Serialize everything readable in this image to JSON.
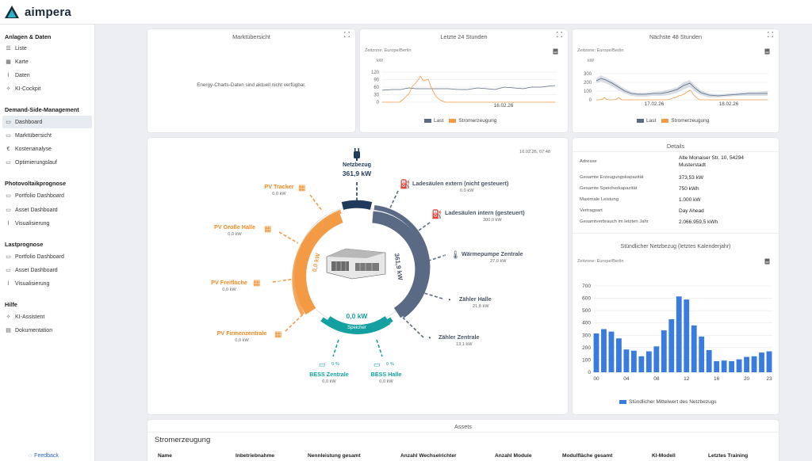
{
  "app": {
    "name": "aimpera"
  },
  "sidebar": {
    "sections": [
      {
        "title": "Anlagen & Daten",
        "items": [
          {
            "label": "Liste",
            "icon": "list-icon"
          },
          {
            "label": "Karte",
            "icon": "map-icon"
          },
          {
            "label": "Daten",
            "icon": "chart-icon"
          },
          {
            "label": "KI-Cockpit",
            "icon": "ai-icon"
          }
        ]
      },
      {
        "title": "Demand-Side-Management",
        "items": [
          {
            "label": "Dashboard",
            "icon": "monitor-icon"
          },
          {
            "label": "Marktübersicht",
            "icon": "monitor-icon"
          },
          {
            "label": "Kostenanalyse",
            "icon": "euro-icon"
          },
          {
            "label": "Optimierungslauf",
            "icon": "monitor-icon"
          }
        ]
      },
      {
        "title": "Photovoltaikprognose",
        "items": [
          {
            "label": "Portfolio Dashboard",
            "icon": "monitor-icon"
          },
          {
            "label": "Asset Dashboard",
            "icon": "monitor-icon"
          },
          {
            "label": "Visualisierung",
            "icon": "chart-icon"
          }
        ]
      },
      {
        "title": "Lastprognose",
        "items": [
          {
            "label": "Portfolio Dashboard",
            "icon": "monitor-icon"
          },
          {
            "label": "Asset Dashboard",
            "icon": "monitor-icon"
          },
          {
            "label": "Visualisierung",
            "icon": "chart-icon"
          }
        ]
      },
      {
        "title": "Hilfe",
        "items": [
          {
            "label": "KI-Assistent",
            "icon": "ai-icon"
          },
          {
            "label": "Dokumentation",
            "icon": "doc-icon"
          }
        ]
      }
    ],
    "feedback": "Feedback"
  },
  "market": {
    "title": "Marktübersicht",
    "message": "Energy-Charts-Daten sind aktuell nicht verfügbar."
  },
  "last24": {
    "title": "Letzte 24 Stunden",
    "timezone": "Zeitzone: Europe/Berlin",
    "unit": "kW",
    "yticks": [
      "120",
      "90",
      "60",
      "30",
      "0"
    ],
    "xtick": "16.02.26",
    "legend": [
      "Last",
      "Stromerzeugung"
    ]
  },
  "next48": {
    "title": "Nächste 48 Stunden",
    "timezone": "Zeitzone: Europe/Berlin",
    "unit": "kW",
    "yticks": [
      "300",
      "200",
      "100",
      "0"
    ],
    "xticks": [
      "17.02.26",
      "18.02.26"
    ],
    "legend": [
      "Last",
      "Stromerzeugung"
    ]
  },
  "colors": {
    "last": "#5a6a85",
    "generation": "#f39a45",
    "storage": "#14a0a0",
    "grid": "#1f3a5c",
    "bar": "#3a7be0"
  },
  "flow": {
    "timestamp": "16.02.26, 07:48",
    "grid": {
      "label": "Netzbezug",
      "value": "361,9 kW"
    },
    "generation_ring": {
      "label": "Stromerzeugung",
      "value": "0,0 kW"
    },
    "load_ring": {
      "label": "Last",
      "value": "361,9 kW"
    },
    "storage_ring": {
      "label": "Speicher",
      "value": "0,0 kW"
    },
    "sources": [
      {
        "name": "PV Tracker",
        "value": "0,0 kW"
      },
      {
        "name": "PV Große Halle",
        "value": "0,0 kW"
      },
      {
        "name": "PV Freifläche",
        "value": "0,0 kW"
      },
      {
        "name": "PV Firmenzentrale",
        "value": "0,0 kW"
      }
    ],
    "loads": [
      {
        "name": "Ladesäulen extern (nicht gesteuert)",
        "value": "0,0 kW"
      },
      {
        "name": "Ladesäulen intern (gesteuert)",
        "value": "300,0 kW"
      },
      {
        "name": "Wärmepumpe Zentrale",
        "value": "27,0 kW"
      },
      {
        "name": "Zähler Halle",
        "value": "21,8 kW"
      },
      {
        "name": "Zähler Zentrale",
        "value": "13,1 kW"
      }
    ],
    "storages": [
      {
        "name": "BESS Zentrale",
        "value": "0,0 kW",
        "soc": "0 %"
      },
      {
        "name": "BESS Halle",
        "value": "0,0 kW",
        "soc": "0 %"
      }
    ]
  },
  "details": {
    "title": "Details",
    "rows": [
      {
        "label": "Adresse",
        "value": "Alte Monaiser Str. 10, 54294",
        "value2": "Musterstadt"
      },
      {
        "label": "Gesamte Erzeugungskapazität",
        "value": "373,53 kW"
      },
      {
        "label": "Gesamte Speicherkapazität",
        "value": "750 kWh"
      },
      {
        "label": "Maximale Leistung",
        "value": "1.000 kW"
      },
      {
        "label": "Vertragsart",
        "value": "Day Ahead"
      },
      {
        "label": "Gesamtverbrauch im letzten Jahr",
        "value": "2.066.959,5 kWh"
      }
    ]
  },
  "hourly": {
    "title": "Stündlicher Netzbezug (letztes Kalenderjahr)",
    "timezone": "Zeitzone: Europe/Berlin",
    "legend": "Stündlicher Mittelwert des Netzbezugs"
  },
  "chart_data": {
    "type": "bar",
    "x": [
      0,
      1,
      2,
      3,
      4,
      5,
      6,
      7,
      8,
      9,
      10,
      11,
      12,
      13,
      14,
      15,
      16,
      17,
      18,
      19,
      20,
      21,
      22,
      23
    ],
    "values": [
      315,
      350,
      330,
      275,
      185,
      175,
      130,
      170,
      210,
      340,
      430,
      615,
      590,
      380,
      290,
      180,
      90,
      95,
      90,
      105,
      125,
      130,
      160,
      170
    ],
    "xticks": [
      "00",
      "04",
      "08",
      "12",
      "16",
      "20",
      "23"
    ],
    "yticks": [
      0,
      100,
      200,
      300,
      400,
      500,
      600,
      700
    ],
    "ylim": [
      0,
      700
    ],
    "grid": true,
    "legend": "bottom"
  },
  "assets": {
    "title": "Assets",
    "section": "Stromerzeugung",
    "columns": [
      "Name",
      "Inbetriebnahme",
      "Nennleistung gesamt",
      "Anzahl Wechselrichter",
      "Anzahl Module",
      "Modulfläche gesamt",
      "KI-Modell",
      "Letztes Training"
    ]
  }
}
